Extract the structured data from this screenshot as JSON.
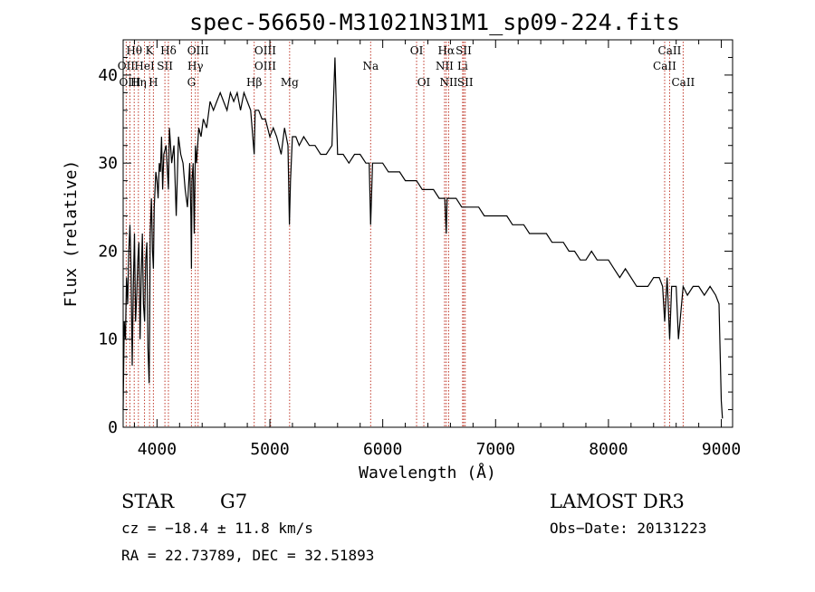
{
  "chart_data": {
    "type": "line",
    "title": "spec-56650-M31021N31M1_sp09-224.fits",
    "xlabel": "Wavelength (Å)",
    "ylabel": "Flux (relative)",
    "xlim": [
      3700,
      9100
    ],
    "ylim": [
      0,
      44
    ],
    "xticks": [
      4000,
      5000,
      6000,
      7000,
      8000,
      9000
    ],
    "yticks": [
      0,
      10,
      20,
      30,
      40
    ],
    "series": [
      {
        "name": "spectrum",
        "x": [
          3700,
          3710,
          3720,
          3730,
          3740,
          3750,
          3760,
          3770,
          3780,
          3790,
          3800,
          3810,
          3820,
          3830,
          3840,
          3850,
          3860,
          3870,
          3880,
          3890,
          3900,
          3910,
          3920,
          3930,
          3935,
          3940,
          3950,
          3960,
          3968,
          3975,
          3990,
          4000,
          4010,
          4020,
          4030,
          4040,
          4050,
          4060,
          4080,
          4101,
          4110,
          4130,
          4150,
          4170,
          4190,
          4210,
          4230,
          4250,
          4270,
          4290,
          4300,
          4305,
          4310,
          4320,
          4330,
          4340,
          4350,
          4370,
          4390,
          4410,
          4440,
          4470,
          4500,
          4530,
          4560,
          4590,
          4620,
          4650,
          4680,
          4710,
          4740,
          4770,
          4800,
          4830,
          4861,
          4870,
          4900,
          4930,
          4960,
          5000,
          5030,
          5060,
          5100,
          5130,
          5160,
          5173,
          5183,
          5200,
          5230,
          5260,
          5300,
          5350,
          5400,
          5450,
          5500,
          5550,
          5577,
          5600,
          5650,
          5700,
          5750,
          5800,
          5850,
          5880,
          5893,
          5910,
          5950,
          6000,
          6050,
          6100,
          6150,
          6200,
          6250,
          6300,
          6350,
          6400,
          6450,
          6500,
          6550,
          6563,
          6570,
          6600,
          6650,
          6700,
          6750,
          6800,
          6850,
          6900,
          6950,
          7000,
          7050,
          7100,
          7150,
          7200,
          7250,
          7300,
          7350,
          7400,
          7450,
          7500,
          7550,
          7600,
          7650,
          7700,
          7750,
          7800,
          7850,
          7900,
          7950,
          8000,
          8050,
          8100,
          8150,
          8200,
          8250,
          8300,
          8350,
          8400,
          8450,
          8480,
          8498,
          8520,
          8542,
          8560,
          8600,
          8620,
          8662,
          8700,
          8750,
          8800,
          8850,
          8900,
          8950,
          8980,
          9000,
          9010
        ],
        "values": [
          2,
          12,
          10,
          17,
          14,
          20,
          23,
          18,
          7,
          16,
          22,
          12,
          15,
          19,
          21,
          10,
          17,
          22,
          14,
          12,
          19,
          21,
          9,
          5,
          12,
          22,
          26,
          20,
          18,
          25,
          29,
          28,
          26,
          30,
          29,
          33,
          27,
          31,
          32,
          27,
          34,
          30,
          32,
          24,
          33,
          31,
          30,
          27,
          25,
          30,
          24,
          18,
          28,
          30,
          22,
          32,
          30,
          34,
          33,
          35,
          34,
          37,
          36,
          37,
          38,
          37,
          36,
          38,
          37,
          38,
          36,
          38,
          37,
          36,
          31,
          36,
          36,
          35,
          35,
          33,
          34,
          33,
          31,
          34,
          32,
          23,
          28,
          33,
          33,
          32,
          33,
          32,
          32,
          31,
          31,
          32,
          42,
          31,
          31,
          30,
          31,
          31,
          30,
          30,
          23,
          30,
          30,
          30,
          29,
          29,
          29,
          28,
          28,
          28,
          27,
          27,
          27,
          26,
          26,
          22,
          26,
          26,
          26,
          25,
          25,
          25,
          25,
          24,
          24,
          24,
          24,
          24,
          23,
          23,
          23,
          22,
          22,
          22,
          22,
          21,
          21,
          21,
          20,
          20,
          19,
          19,
          20,
          19,
          19,
          19,
          18,
          17,
          18,
          17,
          16,
          16,
          16,
          17,
          17,
          16,
          12,
          17,
          10,
          16,
          16,
          10,
          16,
          15,
          16,
          16,
          15,
          16,
          15,
          14,
          3,
          1
        ]
      }
    ],
    "spectral_lines": [
      {
        "label": "Hθ",
        "x": 3798,
        "row": 0
      },
      {
        "label": "K",
        "x": 3934,
        "row": 0
      },
      {
        "label": "Hδ",
        "x": 4101,
        "row": 0
      },
      {
        "label": "OIII",
        "x": 4364,
        "row": 0
      },
      {
        "label": "OIII",
        "x": 4959,
        "row": 0
      },
      {
        "label": "OI",
        "x": 6300,
        "row": 0
      },
      {
        "label": "Hα",
        "x": 6563,
        "row": 0
      },
      {
        "label": "SII",
        "x": 6717,
        "row": 0
      },
      {
        "label": "CaII",
        "x": 8542,
        "row": 0
      },
      {
        "label": "OII",
        "x": 3727,
        "row": 1
      },
      {
        "label": "HeI",
        "x": 3889,
        "row": 1
      },
      {
        "label": "SII",
        "x": 4070,
        "row": 1
      },
      {
        "label": "Hγ",
        "x": 4340,
        "row": 1
      },
      {
        "label": "OIII",
        "x": 4959,
        "row": 1
      },
      {
        "label": "Na",
        "x": 5893,
        "row": 1
      },
      {
        "label": "NII",
        "x": 6548,
        "row": 1
      },
      {
        "label": "Li",
        "x": 6708,
        "row": 1
      },
      {
        "label": "CaII",
        "x": 8498,
        "row": 1
      },
      {
        "label": "OIII",
        "x": 3760,
        "row": 2
      },
      {
        "label": "Hη",
        "x": 3835,
        "row": 2
      },
      {
        "label": "H",
        "x": 3968,
        "row": 2
      },
      {
        "label": "G",
        "x": 4305,
        "row": 2
      },
      {
        "label": "Hβ",
        "x": 4861,
        "row": 2
      },
      {
        "label": "Mg",
        "x": 5175,
        "row": 2
      },
      {
        "label": "OI",
        "x": 6364,
        "row": 2
      },
      {
        "label": "NII",
        "x": 6584,
        "row": 2
      },
      {
        "label": "SII",
        "x": 6731,
        "row": 2
      },
      {
        "label": "CaII",
        "x": 8662,
        "row": 2
      }
    ],
    "extra_marker_lines": [
      3798,
      3835,
      3889,
      3934,
      3968,
      4101,
      4305,
      4340,
      4364,
      4861,
      4959,
      5007,
      5175,
      5893,
      6300,
      6364,
      6548,
      6563,
      6584,
      6708,
      6717,
      6731,
      8498,
      8542,
      8662
    ]
  },
  "info": {
    "object_class": "STAR",
    "subclass": "G7",
    "survey": "LAMOST DR3",
    "redshift_line": "cz = −18.4 ± 11.8 km/s",
    "obs_date_line": "Obs−Date: 20131223",
    "coords_line": "RA =  22.73789, DEC =  32.51893"
  }
}
